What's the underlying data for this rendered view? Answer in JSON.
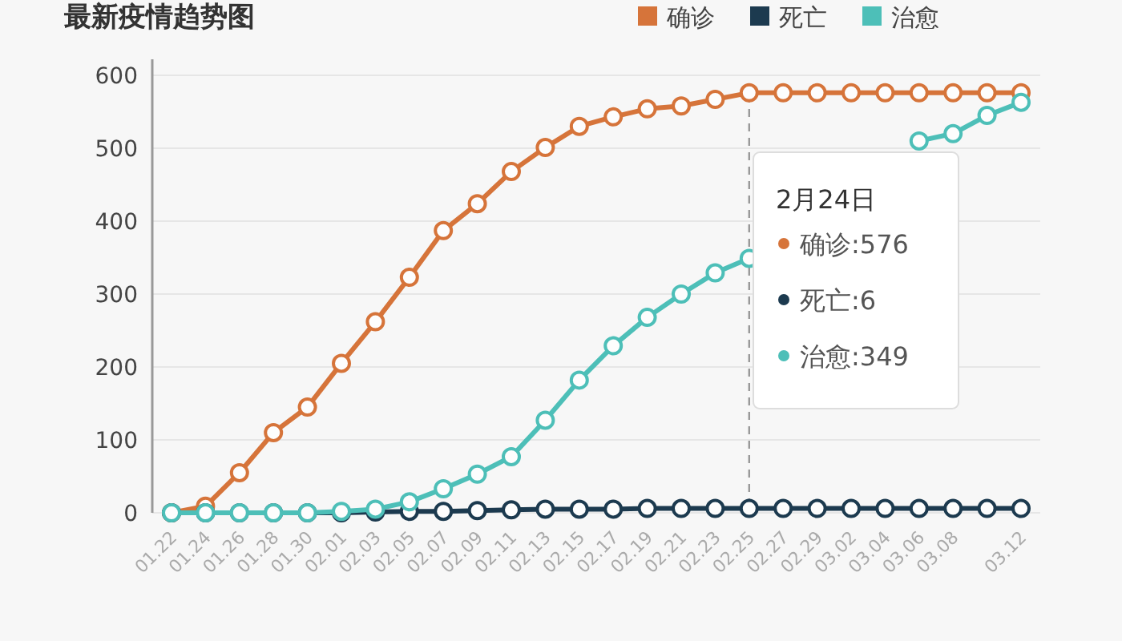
{
  "chart_data": {
    "type": "line",
    "title": "最新疫情趋势图",
    "categories": [
      "01.22",
      "01.24",
      "01.26",
      "01.28",
      "01.30",
      "02.01",
      "02.03",
      "02.05",
      "02.07",
      "02.09",
      "02.11",
      "02.13",
      "02.15",
      "02.17",
      "02.19",
      "02.21",
      "02.23",
      "02.25",
      "02.27",
      "02.29",
      "03.02",
      "03.04",
      "03.06",
      "03.08",
      null,
      "03.12"
    ],
    "series": [
      {
        "name": "确诊",
        "color": "#d6743a",
        "values": [
          0,
          9,
          55,
          110,
          145,
          205,
          262,
          323,
          387,
          424,
          468,
          501,
          530,
          543,
          554,
          558,
          567,
          576,
          576,
          576,
          576,
          576,
          576,
          576,
          576,
          576
        ]
      },
      {
        "name": "死亡",
        "color": "#1c3a4f",
        "values": [
          0,
          0,
          0,
          0,
          0,
          0,
          1,
          2,
          2,
          3,
          4,
          5,
          5,
          5,
          6,
          6,
          6,
          6,
          6,
          6,
          6,
          6,
          6,
          6,
          6,
          6
        ]
      },
      {
        "name": "治愈",
        "color": "#4dbfb8",
        "values": [
          0,
          0,
          0,
          0,
          0,
          2,
          5,
          15,
          33,
          53,
          77,
          127,
          182,
          229,
          268,
          300,
          329,
          349,
          null,
          null,
          null,
          null,
          510,
          520,
          545,
          563
        ]
      }
    ],
    "ylim": [
      0,
      600
    ],
    "yticks": [
      0,
      100,
      200,
      300,
      400,
      500,
      600
    ],
    "grid": "y",
    "legend": "top right",
    "marker": "circle",
    "line_style": "solid",
    "ref_lines": [
      {
        "axis": "x",
        "value": "02.25",
        "color": "#999999",
        "line_style": "dashed"
      }
    ],
    "annotations": [
      "2月24日",
      "确诊:576",
      "死亡:6",
      "治愈:349"
    ]
  }
}
